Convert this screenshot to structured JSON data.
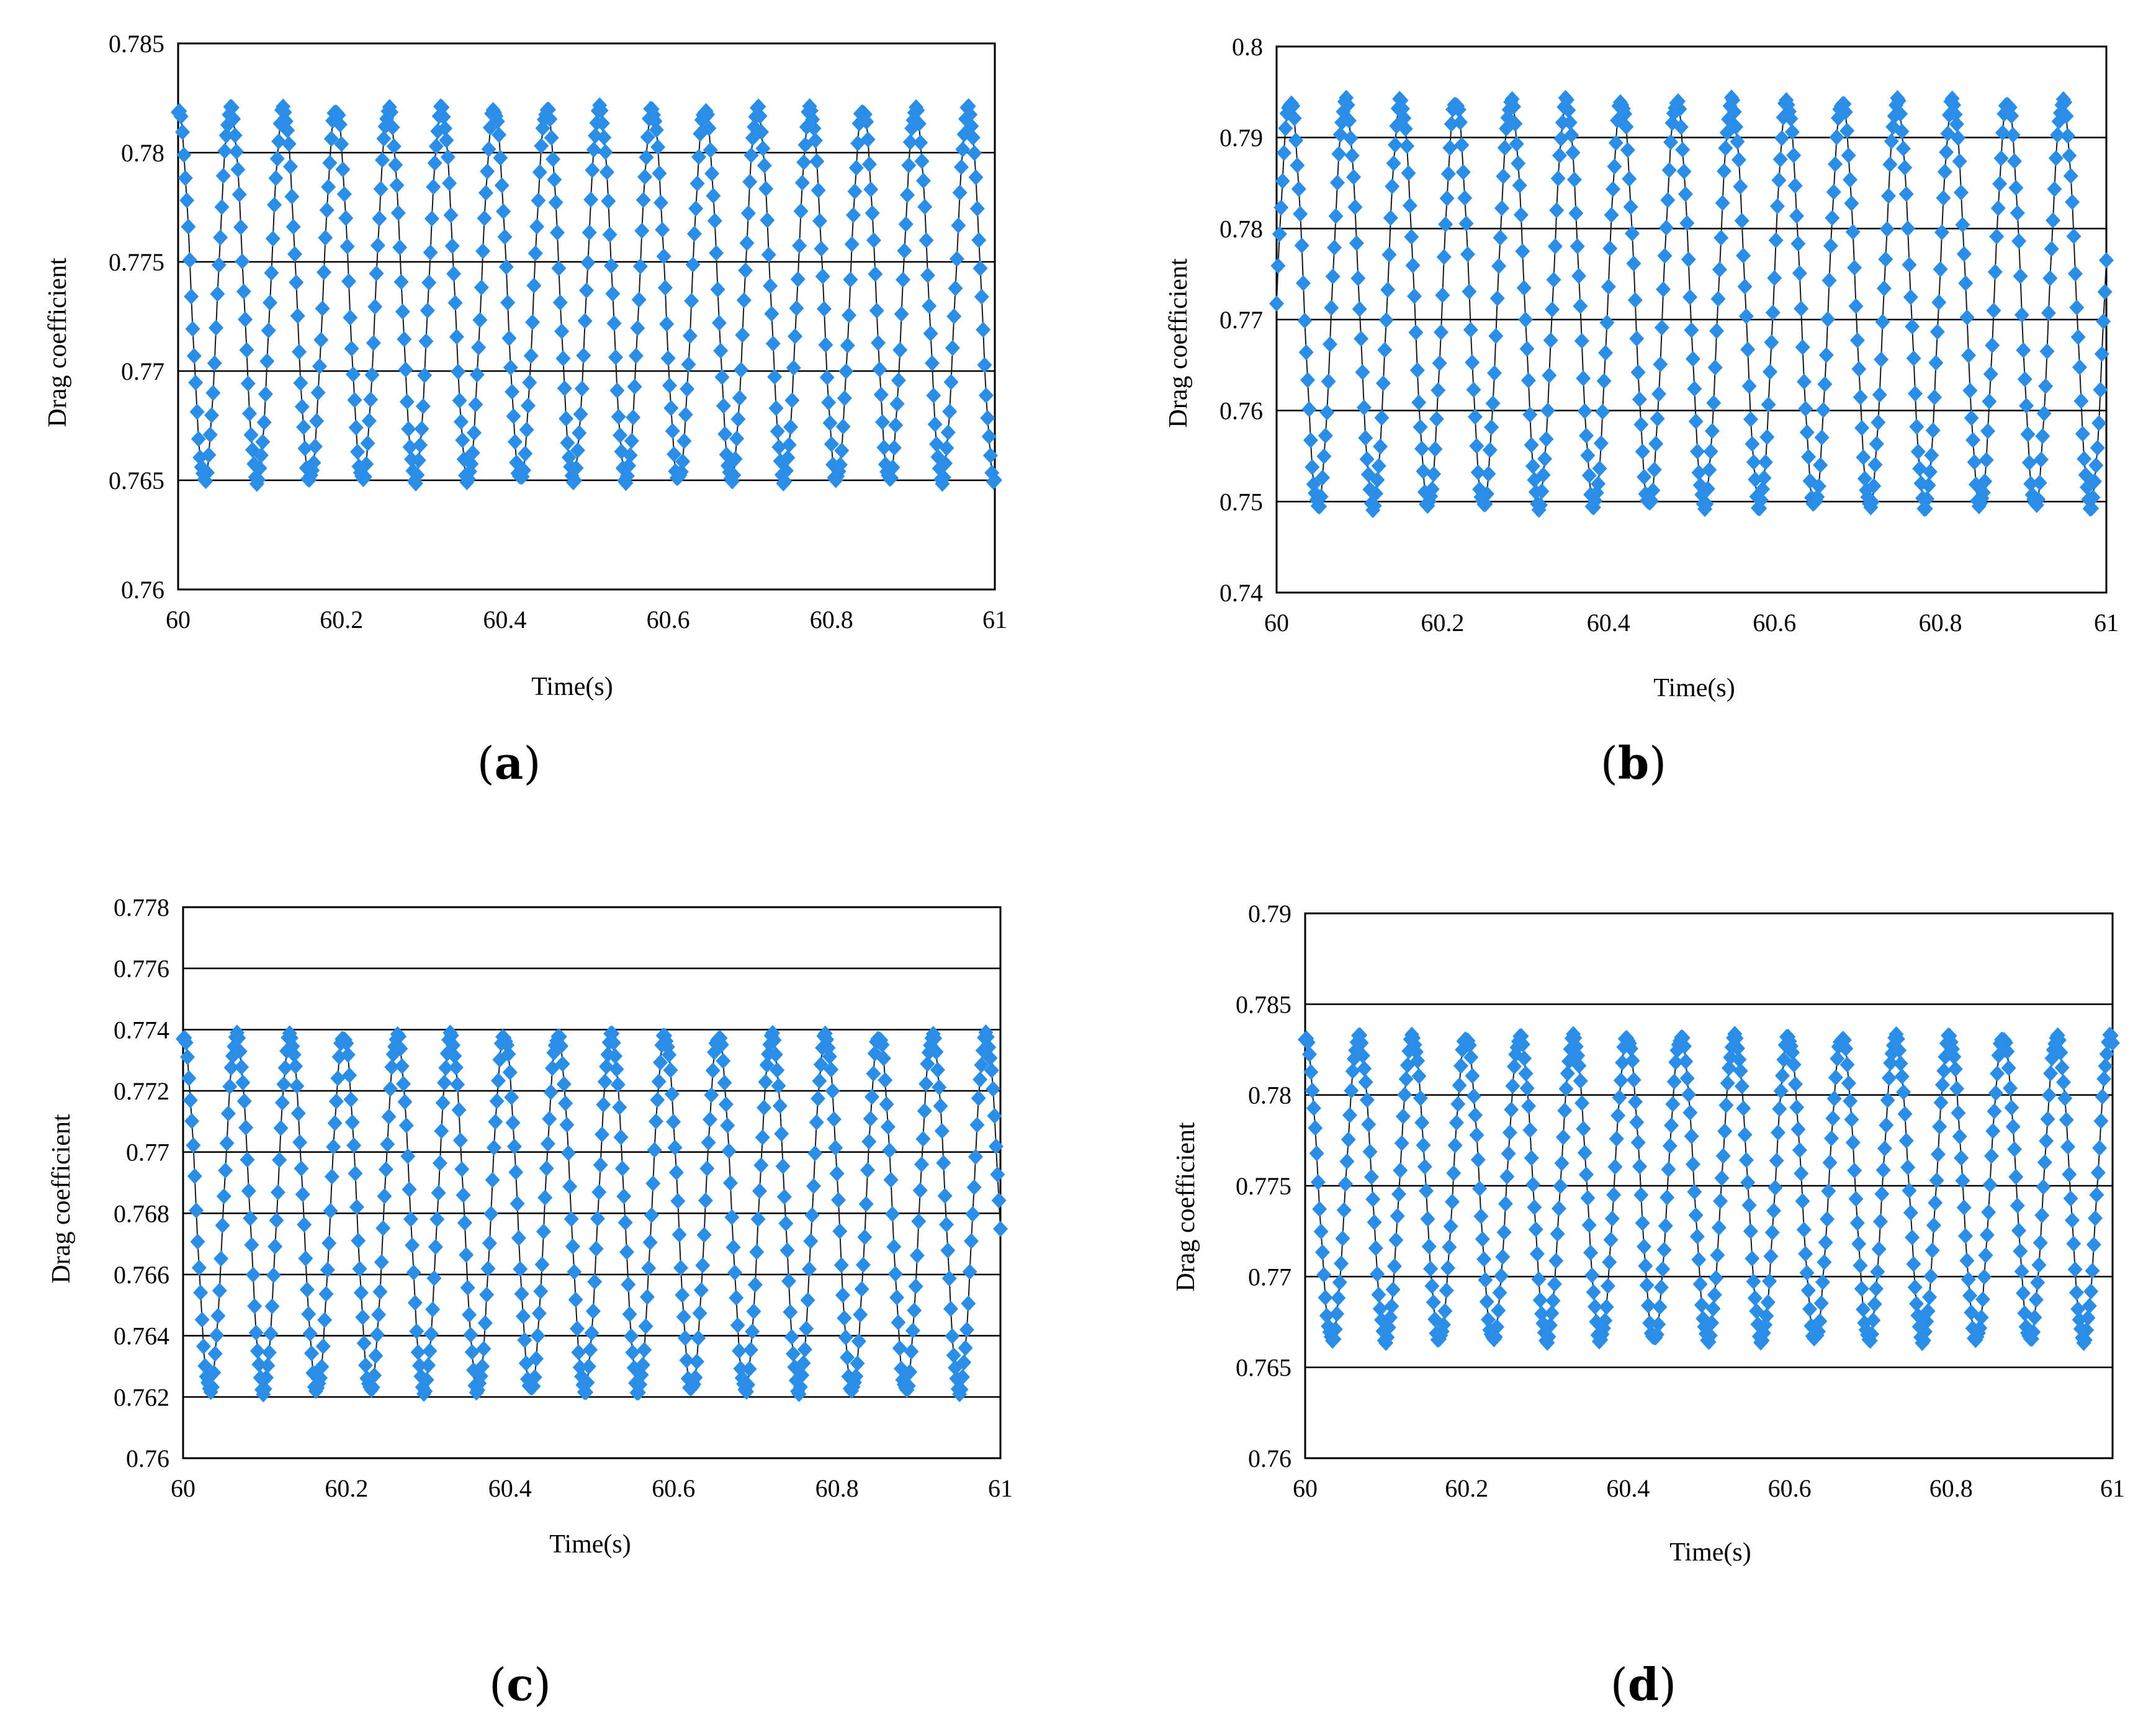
{
  "colors": {
    "marker": "#2a8ee6",
    "line": "#1a1a1a",
    "grid": "#000000",
    "background": "#ffffff"
  },
  "chart_data": [
    {
      "panel": "a",
      "caption_open": "(",
      "caption_letter": "a",
      "caption_close": ")",
      "type": "line",
      "marker": "diamond",
      "xlabel": "Time(s)",
      "ylabel": "Drag  coefficient",
      "xlim": [
        60,
        61
      ],
      "ylim": [
        0.76,
        0.785
      ],
      "xticks": [
        60,
        60.2,
        60.4,
        60.6,
        60.8,
        61
      ],
      "xtick_labels": [
        "60",
        "60.2",
        "60.4",
        "60.6",
        "60.8",
        "61"
      ],
      "yticks": [
        0.76,
        0.765,
        0.77,
        0.775,
        0.78,
        0.785
      ],
      "ytick_labels": [
        "0.76",
        "0.765",
        "0.77",
        "0.775",
        "0.78",
        "0.785"
      ],
      "gridlines_y": [
        0.765,
        0.77,
        0.775,
        0.78
      ],
      "series": [
        {
          "name": "Drag coefficient",
          "oscillation_period_s": 0.0645,
          "min": 0.765,
          "max": 0.782,
          "phase_start": "max"
        }
      ]
    },
    {
      "panel": "b",
      "caption_open": "(",
      "caption_letter": "b",
      "caption_close": ")",
      "type": "line",
      "marker": "diamond",
      "xlabel": "Time(s)",
      "ylabel": "Drag  coefficient",
      "xlim": [
        60,
        61
      ],
      "ylim": [
        0.74,
        0.8
      ],
      "xticks": [
        60,
        60.2,
        60.4,
        60.6,
        60.8,
        61
      ],
      "xtick_labels": [
        "60",
        "60.2",
        "60.4",
        "60.6",
        "60.8",
        "61"
      ],
      "yticks": [
        0.74,
        0.75,
        0.76,
        0.77,
        0.78,
        0.79,
        0.8
      ],
      "ytick_labels": [
        "0.74",
        "0.75",
        "0.76",
        "0.77",
        "0.78",
        "0.79",
        "0.8"
      ],
      "gridlines_y": [
        0.75,
        0.76,
        0.77,
        0.78,
        0.79
      ],
      "series": [
        {
          "name": "Drag coefficient",
          "oscillation_period_s": 0.0665,
          "min": 0.7495,
          "max": 0.794,
          "phase_start": "rising"
        }
      ]
    },
    {
      "panel": "c",
      "caption_open": "(",
      "caption_letter": "c",
      "caption_close": ")",
      "type": "line",
      "marker": "diamond",
      "xlabel": "Time(s)",
      "ylabel": "Drag  coefficient",
      "xlim": [
        60,
        61
      ],
      "ylim": [
        0.76,
        0.778
      ],
      "xticks": [
        60,
        60.2,
        60.4,
        60.6,
        60.8,
        61
      ],
      "xtick_labels": [
        "60",
        "60.2",
        "60.4",
        "60.6",
        "60.8",
        "61"
      ],
      "yticks": [
        0.76,
        0.762,
        0.764,
        0.766,
        0.768,
        0.77,
        0.772,
        0.774,
        0.776,
        0.778
      ],
      "ytick_labels": [
        "0.76",
        "0.762",
        "0.764",
        "0.766",
        "0.768",
        "0.77",
        "0.772",
        "0.774",
        "0.776",
        "0.778"
      ],
      "gridlines_y": [
        0.762,
        0.764,
        0.766,
        0.768,
        0.77,
        0.772,
        0.774,
        0.776
      ],
      "series": [
        {
          "name": "Drag coefficient",
          "oscillation_period_s": 0.0655,
          "min": 0.7622,
          "max": 0.7738,
          "phase_start": "max"
        }
      ]
    },
    {
      "panel": "d",
      "caption_open": "(",
      "caption_letter": "d",
      "caption_close": ")",
      "type": "line",
      "marker": "diamond",
      "xlabel": "Time(s)",
      "ylabel": "Drag  coefficient",
      "xlim": [
        60,
        61
      ],
      "ylim": [
        0.76,
        0.79
      ],
      "xticks": [
        60,
        60.2,
        60.4,
        60.6,
        60.8,
        61
      ],
      "xtick_labels": [
        "60",
        "60.2",
        "60.4",
        "60.6",
        "60.8",
        "61"
      ],
      "yticks": [
        0.76,
        0.765,
        0.77,
        0.775,
        0.78,
        0.785,
        0.79
      ],
      "ytick_labels": [
        "0.76",
        "0.765",
        "0.77",
        "0.775",
        "0.78",
        "0.785",
        "0.79"
      ],
      "gridlines_y": [
        0.765,
        0.77,
        0.775,
        0.78,
        0.785
      ],
      "series": [
        {
          "name": "Drag coefficient",
          "oscillation_period_s": 0.0665,
          "min": 0.7665,
          "max": 0.7832,
          "phase_start": "max"
        }
      ]
    }
  ]
}
